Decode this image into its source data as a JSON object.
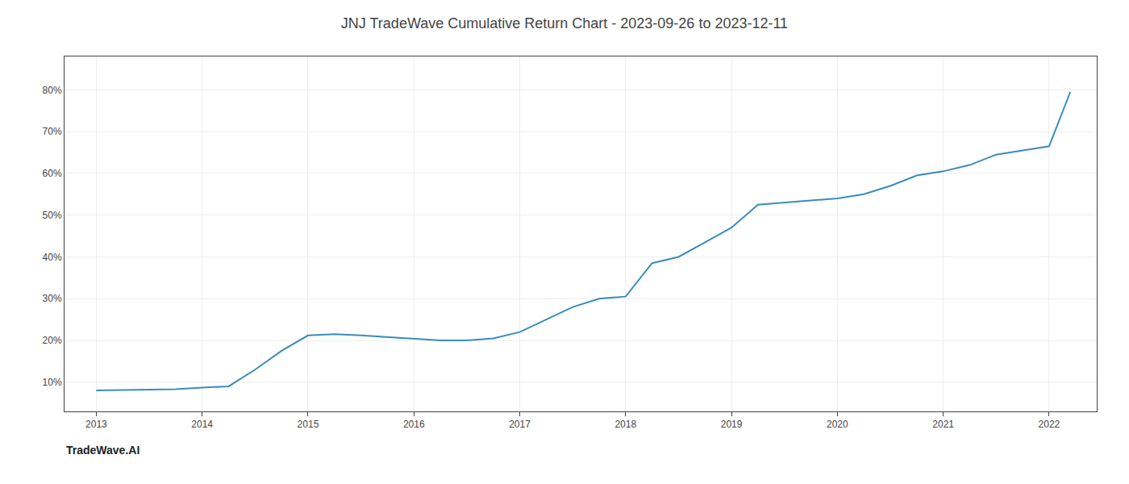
{
  "chart_data": {
    "type": "line",
    "title": "JNJ TradeWave Cumulative Return Chart - 2023-09-26 to 2023-12-11",
    "annotations": [
      "TradeWave.AI"
    ],
    "x": [
      2013.0,
      2013.25,
      2013.5,
      2013.75,
      2014.0,
      2014.25,
      2014.5,
      2014.75,
      2015.0,
      2015.25,
      2015.5,
      2015.75,
      2016.0,
      2016.25,
      2016.5,
      2016.75,
      2017.0,
      2017.25,
      2017.5,
      2017.75,
      2018.0,
      2018.25,
      2018.5,
      2018.75,
      2019.0,
      2019.25,
      2019.5,
      2019.75,
      2020.0,
      2020.25,
      2020.5,
      2020.75,
      2021.0,
      2021.25,
      2021.5,
      2021.75,
      2022.0,
      2022.2
    ],
    "values": [
      8.0,
      8.1,
      8.2,
      8.3,
      8.7,
      9.0,
      13.0,
      17.5,
      21.2,
      21.5,
      21.2,
      20.8,
      20.5,
      20.0,
      20.0,
      20.5,
      22.0,
      25.0,
      28.0,
      30.0,
      30.5,
      38.5,
      40.0,
      43.5,
      47.0,
      52.5,
      53.0,
      53.5,
      54.0,
      55.0,
      57.0,
      59.5,
      60.5,
      62.0,
      64.5,
      65.5,
      66.5,
      79.5
    ],
    "color": "#3a8bbf",
    "xlim": [
      2012.7,
      2022.45
    ],
    "ylim": [
      3,
      88
    ],
    "xticks": [
      2013,
      2014,
      2015,
      2016,
      2017,
      2018,
      2019,
      2020,
      2021,
      2022
    ],
    "yticks": [
      {
        "value": 10,
        "label": "10%"
      },
      {
        "value": 20,
        "label": "20%"
      },
      {
        "value": 30,
        "label": "30%"
      },
      {
        "value": 40,
        "label": "40%"
      },
      {
        "value": 50,
        "label": "50%"
      },
      {
        "value": 60,
        "label": "60%"
      },
      {
        "value": 70,
        "label": "70%"
      },
      {
        "value": 80,
        "label": "80%"
      }
    ],
    "grid": true
  }
}
